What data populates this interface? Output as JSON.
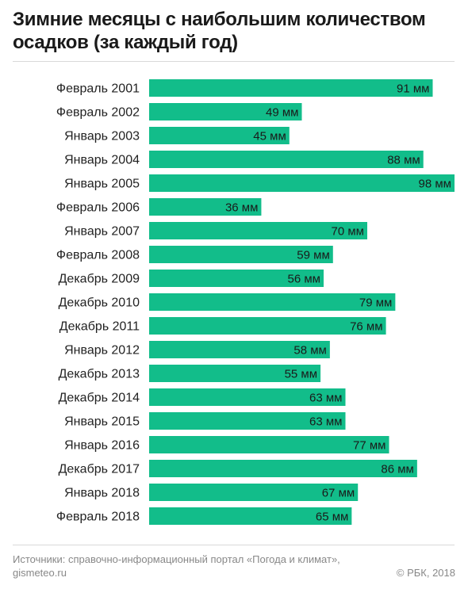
{
  "chart_data": {
    "type": "bar",
    "orientation": "horizontal",
    "title": "Зимние месяцы с наибольшим количеством осадков (за каждый год)",
    "categories": [
      "Февраль 2001",
      "Февраль 2002",
      "Январь 2003",
      "Январь 2004",
      "Январь 2005",
      "Февраль 2006",
      "Январь 2007",
      "Февраль 2008",
      "Декабрь 2009",
      "Декабрь 2010",
      "Декабрь 2011",
      "Январь 2012",
      "Декабрь 2013",
      "Декабрь 2014",
      "Январь 2015",
      "Январь 2016",
      "Декабрь 2017",
      "Январь 2018",
      "Февраль 2018"
    ],
    "values": [
      91,
      49,
      45,
      88,
      98,
      36,
      70,
      59,
      56,
      79,
      76,
      58,
      55,
      63,
      63,
      77,
      86,
      67,
      65
    ],
    "unit": "мм",
    "xlim": [
      0,
      98
    ],
    "bar_color": "#12bd8a",
    "grid": false,
    "legend": "none"
  },
  "footer": {
    "source": "Источники: справочно-информационный портал «Погода и климат», gismeteo.ru",
    "copyright": "© РБК, 2018"
  }
}
